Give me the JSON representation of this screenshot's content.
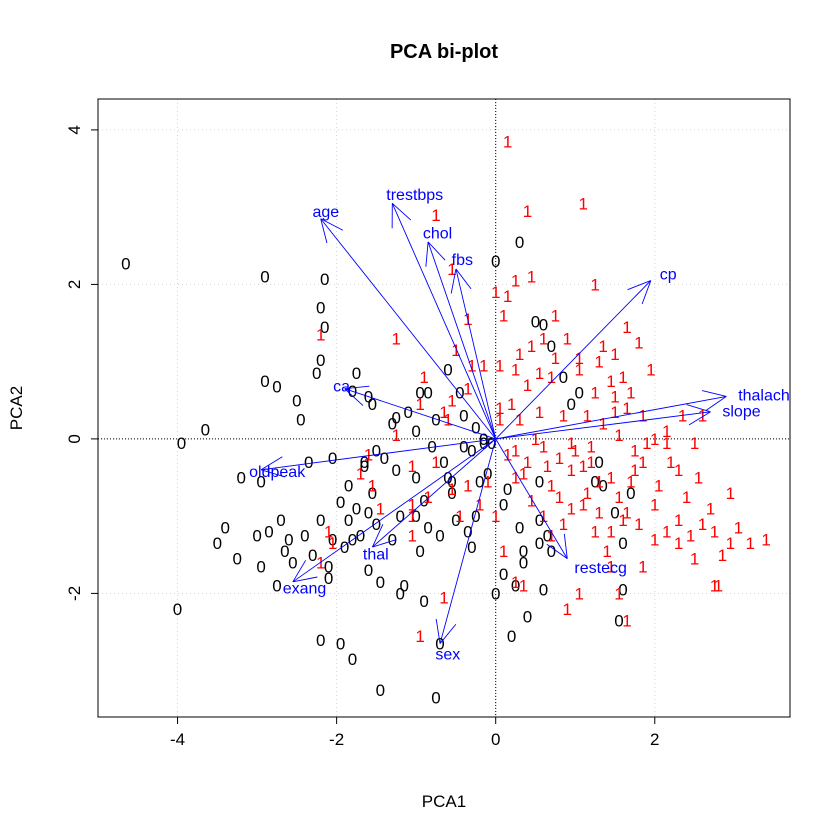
{
  "chart_data": {
    "type": "scatter",
    "title": "PCA bi-plot",
    "xlabel": "PCA1",
    "ylabel": "PCA2",
    "xlim": [
      -5,
      3.7
    ],
    "ylim": [
      -3.6,
      4.4
    ],
    "xticks": [
      -4,
      -2,
      0,
      2
    ],
    "yticks": [
      -2,
      0,
      2,
      4
    ],
    "grid": true,
    "grid_style": "dotted",
    "reference_lines": {
      "x": 0,
      "y": 0
    },
    "colors": {
      "group_0": "#000000",
      "group_1": "#ff0000",
      "vectors": "#0000ff"
    },
    "series": [
      {
        "name": "0",
        "points": [
          [
            -4.65,
            2.27
          ],
          [
            -4.0,
            -2.2
          ],
          [
            -3.95,
            -0.05
          ],
          [
            -3.65,
            0.12
          ],
          [
            -3.5,
            -1.35
          ],
          [
            -3.4,
            -1.15
          ],
          [
            -3.25,
            -1.55
          ],
          [
            -3.2,
            -0.5
          ],
          [
            -3.0,
            -1.25
          ],
          [
            -2.95,
            -0.55
          ],
          [
            -2.95,
            -1.65
          ],
          [
            -2.9,
            2.1
          ],
          [
            -2.85,
            -1.2
          ],
          [
            -2.75,
            -1.9
          ],
          [
            -2.7,
            -1.05
          ],
          [
            -2.65,
            -1.45
          ],
          [
            -2.6,
            -1.3
          ],
          [
            -2.55,
            -1.6
          ],
          [
            -2.4,
            -1.25
          ],
          [
            -2.35,
            -0.3
          ],
          [
            -2.3,
            -1.5
          ],
          [
            -2.2,
            -1.05
          ],
          [
            -2.1,
            -1.8
          ],
          [
            -2.9,
            0.75
          ],
          [
            -2.75,
            0.68
          ],
          [
            -2.5,
            0.5
          ],
          [
            -2.45,
            0.25
          ],
          [
            -2.25,
            0.85
          ],
          [
            -2.2,
            1.02
          ],
          [
            -2.2,
            1.7
          ],
          [
            -2.15,
            2.07
          ],
          [
            -2.15,
            1.45
          ],
          [
            -2.1,
            -1.65
          ],
          [
            -2.05,
            -0.25
          ],
          [
            -1.95,
            -0.82
          ],
          [
            -1.9,
            -1.4
          ],
          [
            -1.85,
            -0.6
          ],
          [
            -1.85,
            -1.05
          ],
          [
            -1.8,
            -1.3
          ],
          [
            -1.75,
            -0.9
          ],
          [
            -1.7,
            -1.25
          ],
          [
            -1.65,
            -0.3
          ],
          [
            -1.6,
            -0.95
          ],
          [
            -1.6,
            -1.7
          ],
          [
            -1.55,
            -0.7
          ],
          [
            -1.5,
            -1.1
          ],
          [
            -1.45,
            -1.85
          ],
          [
            -1.4,
            -0.25
          ],
          [
            -1.3,
            -1.3
          ],
          [
            -1.25,
            -0.4
          ],
          [
            -1.2,
            -1.0
          ],
          [
            -1.15,
            -1.9
          ],
          [
            -1.0,
            -1.0
          ],
          [
            -1.0,
            -0.5
          ],
          [
            -0.95,
            -1.45
          ],
          [
            -0.9,
            -2.1
          ],
          [
            -0.85,
            0.6
          ],
          [
            -0.8,
            -0.1
          ],
          [
            -0.75,
            0.25
          ],
          [
            -0.7,
            -1.25
          ],
          [
            -0.65,
            -0.3
          ],
          [
            -0.6,
            -0.5
          ],
          [
            -0.55,
            -0.7
          ],
          [
            -0.5,
            -1.05
          ],
          [
            -0.45,
            0.6
          ],
          [
            -0.4,
            0.3
          ],
          [
            -0.35,
            -1.2
          ],
          [
            -0.3,
            -0.15
          ],
          [
            -0.25,
            0.15
          ],
          [
            -0.2,
            -0.55
          ],
          [
            -0.15,
            0.0
          ],
          [
            -0.1,
            -0.45
          ],
          [
            -0.85,
            -1.15
          ],
          [
            -1.2,
            -2.0
          ],
          [
            -0.9,
            -0.8
          ],
          [
            -1.3,
            0.2
          ],
          [
            -1.55,
            0.45
          ],
          [
            -1.6,
            0.55
          ],
          [
            -1.75,
            0.85
          ],
          [
            -1.8,
            0.62
          ],
          [
            -1.25,
            0.28
          ],
          [
            -1.1,
            0.35
          ],
          [
            -1.0,
            0.1
          ],
          [
            -0.95,
            0.6
          ],
          [
            -1.5,
            -0.15
          ],
          [
            -1.65,
            -0.35
          ],
          [
            -2.05,
            -1.3
          ],
          [
            -0.6,
            0.9
          ],
          [
            -0.55,
            -0.55
          ],
          [
            -0.4,
            -0.1
          ],
          [
            -0.05,
            -0.05
          ],
          [
            -0.25,
            -1.0
          ],
          [
            -0.15,
            -0.05
          ],
          [
            0.0,
            2.3
          ],
          [
            0.3,
            2.55
          ],
          [
            0.5,
            1.52
          ],
          [
            0.6,
            1.48
          ],
          [
            0.7,
            1.2
          ],
          [
            0.85,
            0.8
          ],
          [
            0.95,
            0.45
          ],
          [
            1.05,
            0.6
          ],
          [
            0.1,
            -0.85
          ],
          [
            0.15,
            -0.65
          ],
          [
            0.3,
            -1.15
          ],
          [
            0.35,
            -1.6
          ],
          [
            0.25,
            -1.9
          ],
          [
            0.55,
            -0.55
          ],
          [
            0.7,
            -1.45
          ],
          [
            0.65,
            -1.25
          ],
          [
            0.55,
            -1.05
          ],
          [
            0.4,
            -2.3
          ],
          [
            0.6,
            -1.95
          ],
          [
            1.25,
            -0.55
          ],
          [
            1.35,
            -0.6
          ],
          [
            1.5,
            -0.95
          ],
          [
            1.6,
            -1.35
          ],
          [
            1.7,
            -0.7
          ],
          [
            0.35,
            -1.45
          ],
          [
            0.1,
            -1.75
          ],
          [
            0.0,
            -2.0
          ],
          [
            -0.7,
            -2.65
          ],
          [
            -2.2,
            -2.6
          ],
          [
            -1.95,
            -2.65
          ],
          [
            -1.8,
            -2.85
          ],
          [
            -1.45,
            -3.25
          ],
          [
            -0.75,
            -3.35
          ],
          [
            0.2,
            -2.55
          ],
          [
            1.3,
            -0.3
          ],
          [
            1.55,
            -2.35
          ],
          [
            1.6,
            -1.95
          ],
          [
            0.55,
            -1.35
          ],
          [
            -0.3,
            -1.4
          ]
        ]
      },
      {
        "name": "1",
        "points": [
          [
            0.15,
            3.85
          ],
          [
            0.4,
            2.95
          ],
          [
            1.1,
            3.05
          ],
          [
            -0.75,
            2.9
          ],
          [
            -0.55,
            2.2
          ],
          [
            0.0,
            1.9
          ],
          [
            0.15,
            1.85
          ],
          [
            0.25,
            2.05
          ],
          [
            0.45,
            2.1
          ],
          [
            0.1,
            1.6
          ],
          [
            -0.35,
            1.55
          ],
          [
            -0.5,
            1.15
          ],
          [
            -0.3,
            0.95
          ],
          [
            -0.15,
            0.95
          ],
          [
            0.05,
            0.95
          ],
          [
            0.25,
            0.9
          ],
          [
            0.45,
            1.2
          ],
          [
            0.6,
            1.3
          ],
          [
            0.75,
            1.6
          ],
          [
            0.9,
            1.3
          ],
          [
            1.05,
            1.05
          ],
          [
            1.3,
            1.0
          ],
          [
            1.5,
            1.1
          ],
          [
            1.65,
            1.45
          ],
          [
            1.8,
            1.25
          ],
          [
            1.95,
            0.9
          ],
          [
            1.25,
            2.0
          ],
          [
            1.25,
            0.6
          ],
          [
            1.5,
            0.55
          ],
          [
            -2.2,
            1.35
          ],
          [
            -1.25,
            1.3
          ],
          [
            -0.9,
            0.8
          ],
          [
            -0.95,
            0.45
          ],
          [
            -0.6,
            0.25
          ],
          [
            0.05,
            0.25
          ],
          [
            0.2,
            0.45
          ],
          [
            0.4,
            0.7
          ],
          [
            0.55,
            0.35
          ],
          [
            0.7,
            0.8
          ],
          [
            0.85,
            0.3
          ],
          [
            1.05,
            0.9
          ],
          [
            1.15,
            0.3
          ],
          [
            1.35,
            0.2
          ],
          [
            1.45,
            0.75
          ],
          [
            1.55,
            0.05
          ],
          [
            1.65,
            0.4
          ],
          [
            1.75,
            -0.15
          ],
          [
            1.85,
            0.3
          ],
          [
            2.0,
            0.0
          ],
          [
            2.15,
            -0.05
          ],
          [
            2.3,
            -0.4
          ],
          [
            2.5,
            -0.05
          ],
          [
            2.6,
            0.3
          ],
          [
            2.35,
            0.3
          ],
          [
            2.15,
            0.1
          ],
          [
            1.85,
            -0.3
          ],
          [
            1.7,
            -0.55
          ],
          [
            1.55,
            -0.75
          ],
          [
            1.45,
            -0.5
          ],
          [
            1.2,
            -0.3
          ],
          [
            1.0,
            -0.15
          ],
          [
            0.8,
            -0.25
          ],
          [
            0.6,
            -0.1
          ],
          [
            0.4,
            -0.3
          ],
          [
            0.25,
            -0.5
          ],
          [
            0.45,
            -0.8
          ],
          [
            0.7,
            -0.6
          ],
          [
            0.95,
            -0.9
          ],
          [
            1.15,
            -0.7
          ],
          [
            1.3,
            -0.95
          ],
          [
            1.45,
            -1.2
          ],
          [
            1.6,
            -1.05
          ],
          [
            1.8,
            -1.1
          ],
          [
            2.0,
            -0.85
          ],
          [
            2.15,
            -1.2
          ],
          [
            2.3,
            -1.05
          ],
          [
            2.45,
            -1.25
          ],
          [
            2.6,
            -1.1
          ],
          [
            2.75,
            -1.2
          ],
          [
            2.95,
            -1.35
          ],
          [
            3.05,
            -1.15
          ],
          [
            3.2,
            -1.35
          ],
          [
            3.4,
            -1.3
          ],
          [
            2.95,
            -0.7
          ],
          [
            2.75,
            -1.9
          ],
          [
            2.8,
            -1.9
          ],
          [
            1.85,
            -1.65
          ],
          [
            2.0,
            -1.3
          ],
          [
            1.55,
            -2.0
          ],
          [
            1.65,
            -2.35
          ],
          [
            1.05,
            -2.0
          ],
          [
            0.9,
            -2.2
          ],
          [
            0.35,
            -1.9
          ],
          [
            0.25,
            -1.85
          ],
          [
            0.1,
            -1.45
          ],
          [
            0.0,
            -1.0
          ],
          [
            -0.1,
            -0.55
          ],
          [
            -0.35,
            -0.6
          ],
          [
            -0.55,
            -0.65
          ],
          [
            -1.05,
            -1.25
          ],
          [
            -1.05,
            -0.85
          ],
          [
            -1.05,
            -0.35
          ],
          [
            -1.25,
            0.05
          ],
          [
            -1.55,
            -0.6
          ],
          [
            -1.45,
            -0.9
          ],
          [
            -2.05,
            -1.35
          ],
          [
            -2.1,
            -1.2
          ],
          [
            -2.2,
            -1.6
          ],
          [
            -1.6,
            -0.2
          ],
          [
            -1.7,
            -0.45
          ],
          [
            -1.05,
            -1.0
          ],
          [
            -0.85,
            -0.75
          ],
          [
            -0.75,
            -0.3
          ],
          [
            -0.65,
            0.35
          ],
          [
            -0.55,
            0.5
          ],
          [
            -0.65,
            -2.05
          ],
          [
            -0.95,
            -2.55
          ],
          [
            -0.35,
            0.65
          ],
          [
            0.05,
            0.4
          ],
          [
            0.3,
            0.25
          ],
          [
            0.5,
            0.0
          ],
          [
            0.65,
            -0.35
          ],
          [
            0.8,
            -0.75
          ],
          [
            0.95,
            -0.4
          ],
          [
            1.1,
            -0.85
          ],
          [
            1.25,
            -1.2
          ],
          [
            1.4,
            -1.45
          ],
          [
            1.75,
            -0.4
          ],
          [
            2.05,
            -0.6
          ],
          [
            2.2,
            -0.3
          ],
          [
            2.4,
            -0.75
          ],
          [
            2.55,
            -0.5
          ],
          [
            2.7,
            -0.9
          ],
          [
            1.9,
            -0.05
          ],
          [
            1.6,
            0.8
          ],
          [
            1.35,
            1.2
          ],
          [
            1.5,
            0.35
          ],
          [
            1.7,
            0.6
          ],
          [
            0.35,
            -0.45
          ],
          [
            0.15,
            -0.2
          ],
          [
            1.2,
            -0.1
          ],
          [
            1.1,
            -0.35
          ],
          [
            1.3,
            -0.55
          ],
          [
            0.6,
            -1.0
          ],
          [
            0.7,
            -1.25
          ],
          [
            0.85,
            -1.1
          ],
          [
            -0.45,
            -1.0
          ],
          [
            -0.2,
            -0.85
          ],
          [
            0.25,
            -0.15
          ],
          [
            1.45,
            -1.65
          ],
          [
            1.65,
            -0.95
          ],
          [
            2.3,
            -1.35
          ],
          [
            2.5,
            -1.55
          ],
          [
            2.85,
            -1.5
          ],
          [
            0.95,
            -0.05
          ],
          [
            0.75,
            1.05
          ],
          [
            0.55,
            0.85
          ],
          [
            0.3,
            1.1
          ]
        ]
      }
    ],
    "loadings": [
      {
        "name": "age",
        "x": -2.2,
        "y": 2.85
      },
      {
        "name": "trestbps",
        "x": -1.3,
        "y": 3.05
      },
      {
        "name": "chol",
        "x": -0.85,
        "y": 2.55
      },
      {
        "name": "fbs",
        "x": -0.5,
        "y": 2.2
      },
      {
        "name": "cp",
        "x": 1.95,
        "y": 2.05
      },
      {
        "name": "thalach",
        "x": 2.9,
        "y": 0.55
      },
      {
        "name": "slope",
        "x": 2.7,
        "y": 0.35
      },
      {
        "name": "ca",
        "x": -1.9,
        "y": 0.65
      },
      {
        "name": "oldpeak",
        "x": -2.95,
        "y": -0.4
      },
      {
        "name": "thal",
        "x": -1.55,
        "y": -1.4
      },
      {
        "name": "exang",
        "x": -2.55,
        "y": -1.85
      },
      {
        "name": "sex",
        "x": -0.7,
        "y": -2.65
      },
      {
        "name": "restecg",
        "x": 0.9,
        "y": -1.55
      }
    ]
  }
}
